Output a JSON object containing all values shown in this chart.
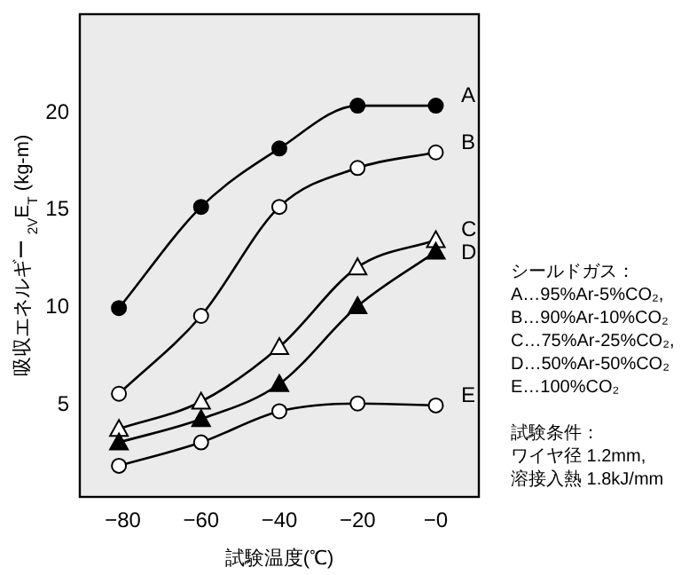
{
  "chart_data": {
    "type": "line",
    "xlabel": "試験温度(℃)",
    "ylabel": "吸収エネルギー $_{2V}$E$_{T}$ (kg-m)",
    "xlim": [
      -91,
      11
    ],
    "ylim": [
      0.2,
      25
    ],
    "xticks": [
      {
        "value": -80,
        "label": "−80"
      },
      {
        "value": -60,
        "label": "−60"
      },
      {
        "value": -40,
        "label": "−40"
      },
      {
        "value": -20,
        "label": "−20"
      },
      {
        "value": 0,
        "label": "−0"
      }
    ],
    "yticks": [
      5,
      10,
      15,
      20
    ],
    "grid": false,
    "line_style": "solid",
    "x": [
      -81,
      -60,
      -40,
      -20,
      0
    ],
    "series": [
      {
        "name": "A",
        "color": "#000000",
        "marker": "circle",
        "values": [
          9.9,
          15.1,
          18.1,
          20.3,
          20.3
        ]
      },
      {
        "name": "B",
        "color": "#000000",
        "marker": "circle",
        "values": [
          5.5,
          9.5,
          15.1,
          17.1,
          17.9
        ]
      },
      {
        "name": "C",
        "color": "#000000",
        "marker": "triangle",
        "values": [
          3.7,
          5.1,
          7.9,
          12.0,
          13.4
        ]
      },
      {
        "name": "D",
        "color": "#000000",
        "marker": "triangle",
        "values": [
          3.0,
          4.2,
          6.0,
          10.0,
          12.8
        ]
      },
      {
        "name": "E",
        "color": "#000000",
        "marker": "circle",
        "values": [
          1.8,
          3.0,
          4.6,
          5.0,
          4.9
        ]
      }
    ],
    "annotations": [
      "シールドガス：",
      "A…95%Ar-5%CO₂,",
      "B…90%Ar-10%CO₂",
      "C…75%Ar-25%CO₂,",
      "D…50%Ar-50%CO₂",
      "E…100%CO₂",
      "試験条件：",
      "ワイヤ径 1.2mm,",
      "溶接入熱 1.8kJ/mm"
    ]
  }
}
